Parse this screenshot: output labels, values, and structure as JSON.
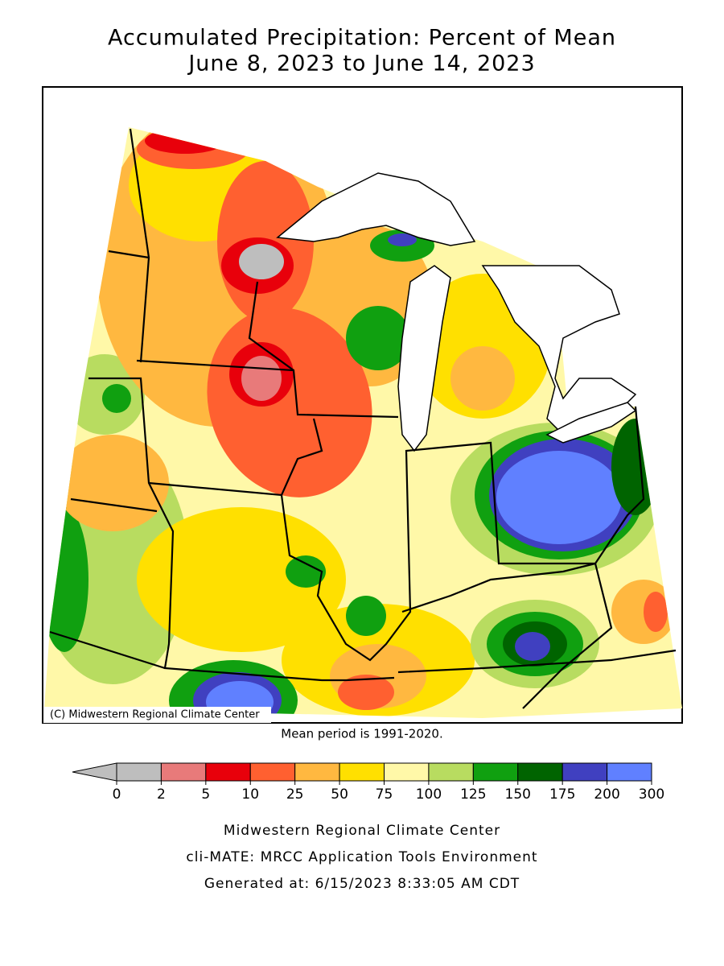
{
  "title": [
    "Accumulated Precipitation: Percent of Mean",
    "June 8, 2023 to June 14, 2023"
  ],
  "map": {
    "credit": "(C) Midwestern Regional Climate Center",
    "note": "Mean period is 1991-2020."
  },
  "legend": {
    "ticks": [
      0,
      2,
      5,
      10,
      25,
      50,
      75,
      100,
      125,
      150,
      175,
      200,
      300
    ],
    "colors": [
      "#bebebe",
      "#e87a7a",
      "#e8000b",
      "#ff6030",
      "#ffb840",
      "#ffe000",
      "#fff8a8",
      "#b8dc60",
      "#10a010",
      "#006400",
      "#4040c0",
      "#6080ff"
    ]
  },
  "footer": [
    "Midwestern Regional Climate Center",
    "cli-MATE: MRCC Application Tools Environment",
    "Generated at: 6/15/2023 8:33:05 AM CDT"
  ]
}
